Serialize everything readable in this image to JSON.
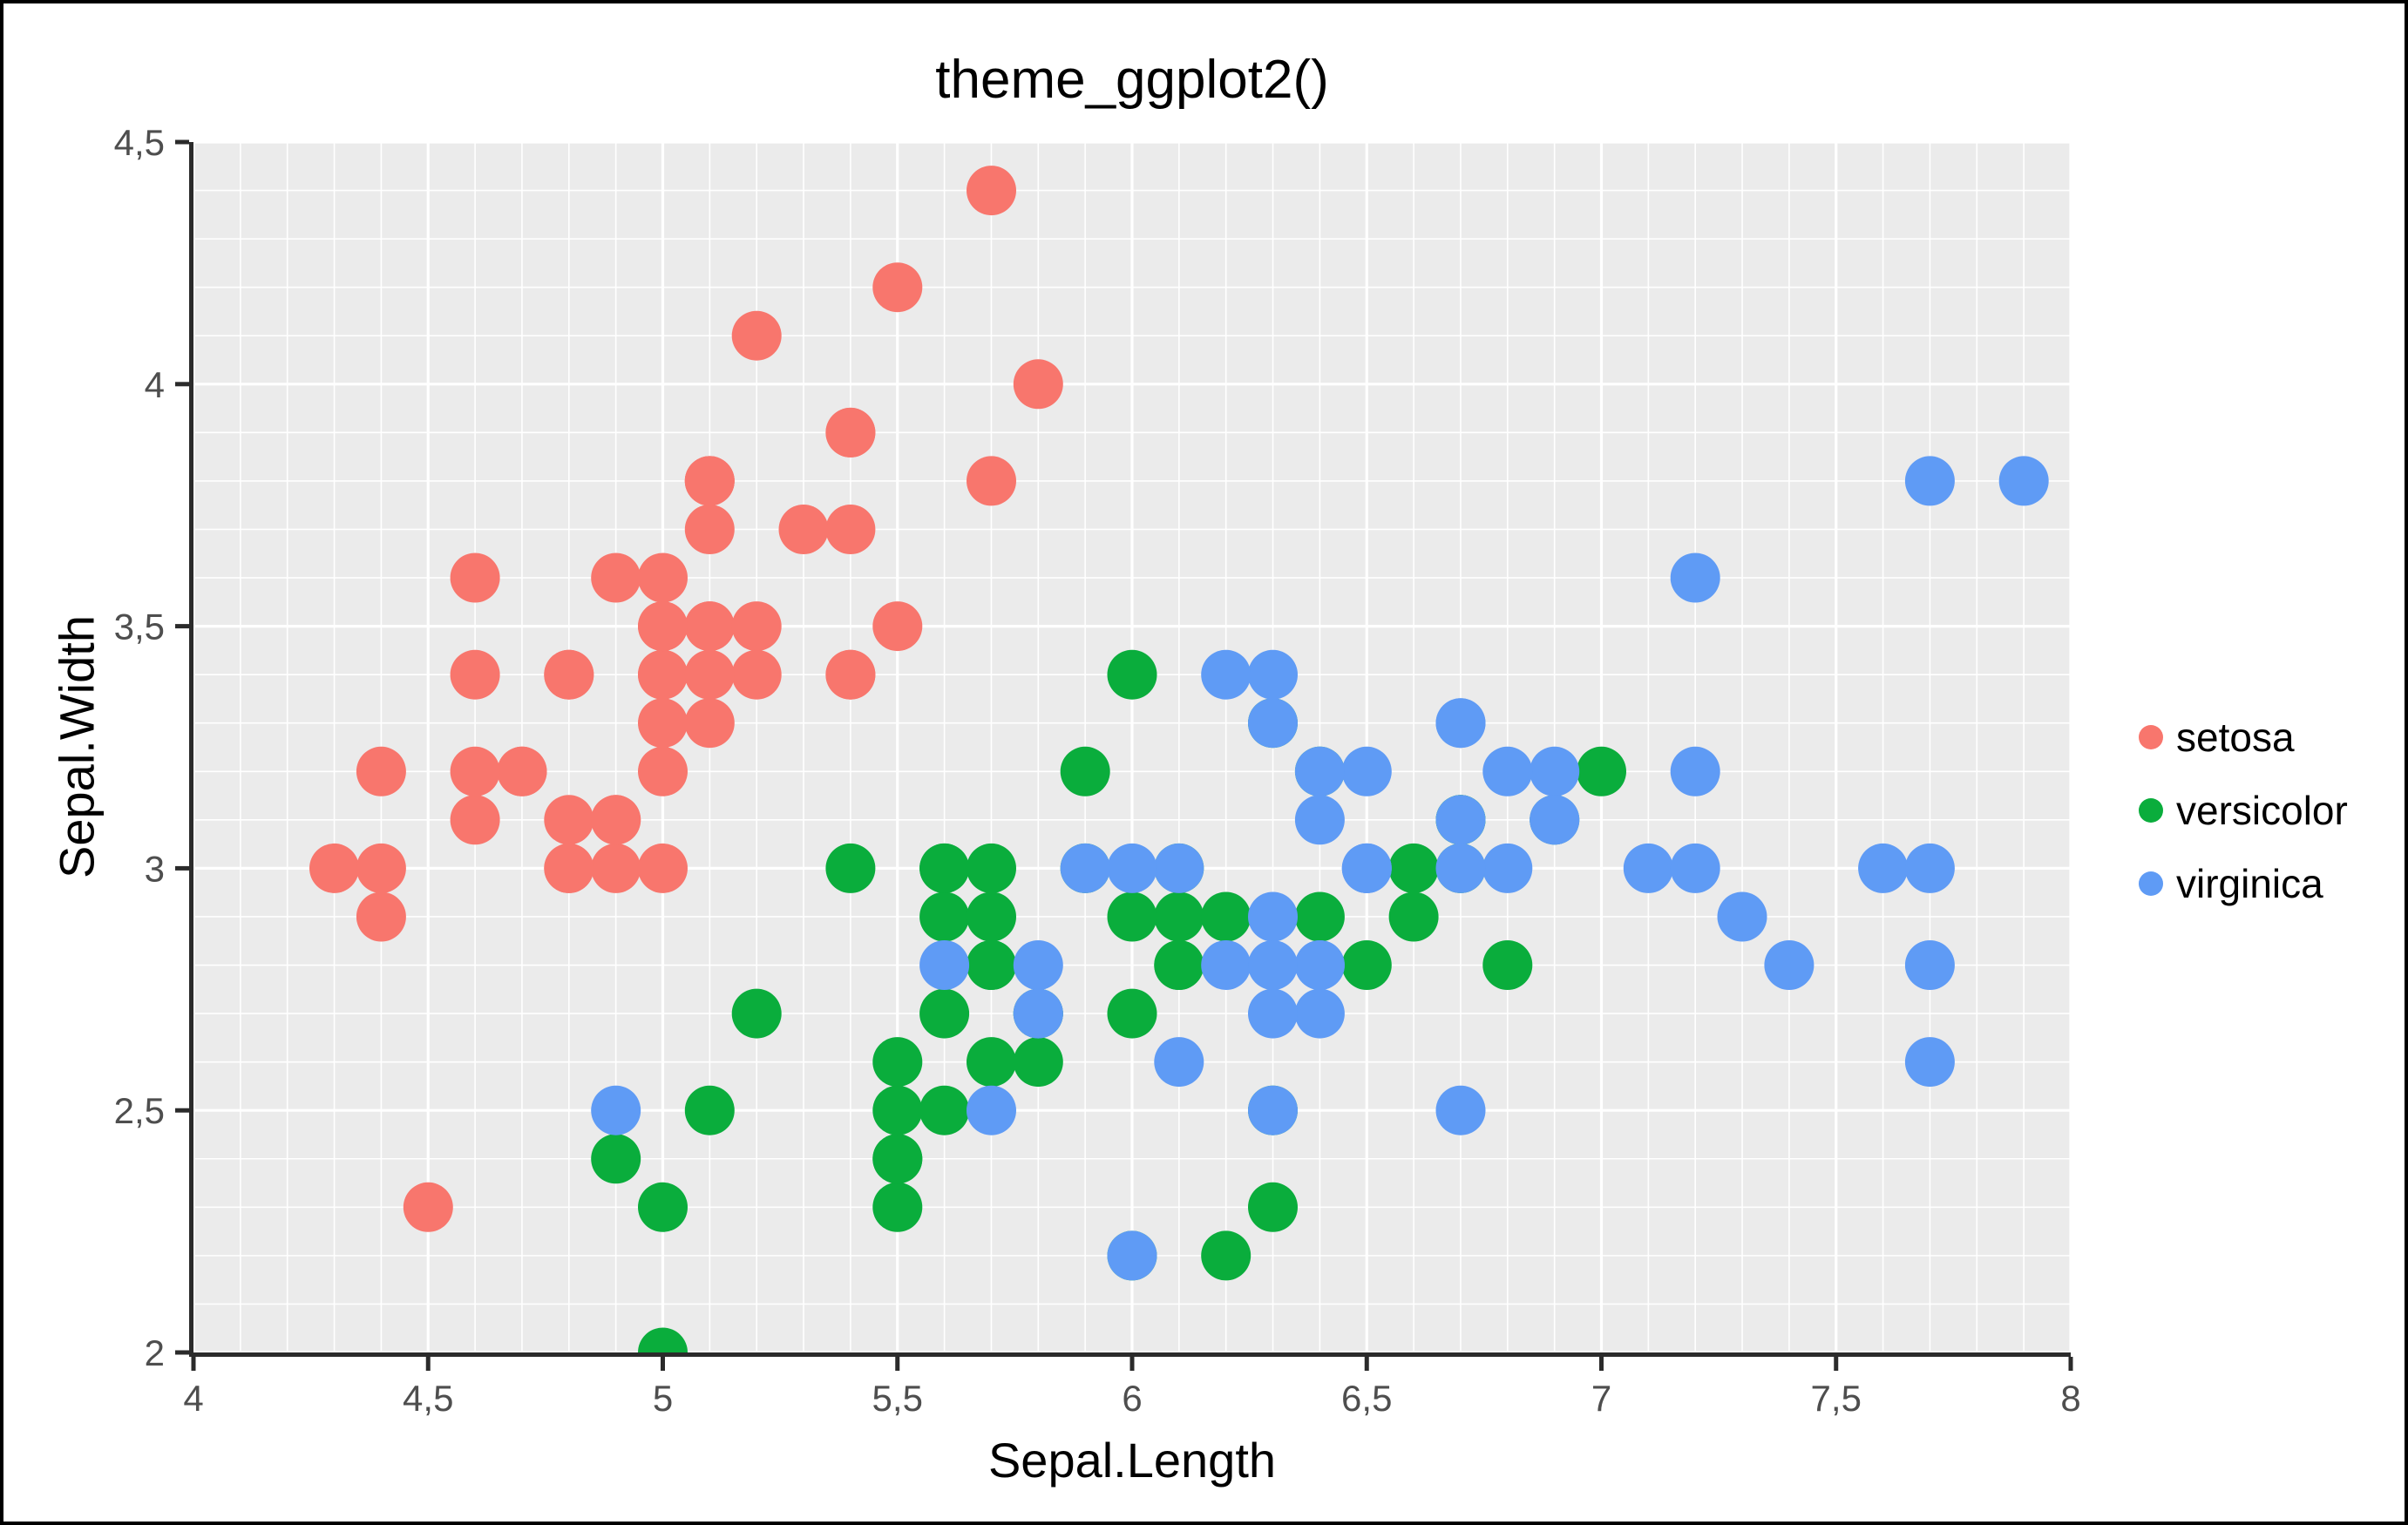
{
  "chart_data": {
    "type": "scatter",
    "title": "theme_ggplot2()",
    "xlabel": "Sepal.Length",
    "ylabel": "Sepal.Width",
    "xlim": [
      4,
      8
    ],
    "ylim": [
      2,
      4.5
    ],
    "x_major_ticks": [
      4,
      4.5,
      5,
      5.5,
      6,
      6.5,
      7,
      7.5,
      8
    ],
    "x_tick_labels": [
      "4",
      "4,5",
      "5",
      "5,5",
      "6",
      "6,5",
      "7",
      "7,5",
      "8"
    ],
    "y_major_ticks": [
      2,
      2.5,
      3,
      3.5,
      4,
      4.5
    ],
    "y_tick_labels": [
      "2",
      "2,5",
      "3",
      "3,5",
      "4",
      "4,5"
    ],
    "minor_step": 0.1,
    "grid": true,
    "legend_position": "right",
    "colors": {
      "panel_background": "#EBEBEB",
      "grid": "#FFFFFF",
      "axis_line": "#2B2B2B",
      "tick_label": "#4E4E4E",
      "text": "#000000"
    },
    "series": [
      {
        "name": "setosa",
        "color": "#F8766D",
        "points": [
          [
            5.1,
            3.5
          ],
          [
            4.9,
            3.0
          ],
          [
            4.7,
            3.2
          ],
          [
            4.6,
            3.1
          ],
          [
            5.0,
            3.6
          ],
          [
            5.4,
            3.9
          ],
          [
            4.6,
            3.4
          ],
          [
            5.0,
            3.4
          ],
          [
            4.4,
            2.9
          ],
          [
            4.9,
            3.1
          ],
          [
            5.4,
            3.7
          ],
          [
            4.8,
            3.4
          ],
          [
            4.8,
            3.0
          ],
          [
            4.3,
            3.0
          ],
          [
            5.8,
            4.0
          ],
          [
            5.7,
            4.4
          ],
          [
            5.4,
            3.9
          ],
          [
            5.1,
            3.5
          ],
          [
            5.7,
            3.8
          ],
          [
            5.1,
            3.8
          ],
          [
            5.4,
            3.4
          ],
          [
            5.1,
            3.7
          ],
          [
            4.6,
            3.6
          ],
          [
            5.1,
            3.3
          ],
          [
            4.8,
            3.4
          ],
          [
            5.0,
            3.0
          ],
          [
            5.0,
            3.4
          ],
          [
            5.2,
            3.5
          ],
          [
            5.2,
            3.4
          ],
          [
            4.7,
            3.2
          ],
          [
            4.8,
            3.1
          ],
          [
            5.4,
            3.4
          ],
          [
            5.2,
            4.1
          ],
          [
            5.5,
            4.2
          ],
          [
            4.9,
            3.1
          ],
          [
            5.0,
            3.2
          ],
          [
            5.5,
            3.5
          ],
          [
            4.9,
            3.6
          ],
          [
            4.4,
            3.0
          ],
          [
            5.1,
            3.4
          ],
          [
            5.0,
            3.5
          ],
          [
            4.5,
            2.3
          ],
          [
            4.4,
            3.2
          ],
          [
            5.0,
            3.5
          ],
          [
            5.1,
            3.8
          ],
          [
            4.8,
            3.0
          ],
          [
            5.1,
            3.8
          ],
          [
            4.6,
            3.2
          ],
          [
            5.3,
            3.7
          ],
          [
            5.0,
            3.3
          ]
        ]
      },
      {
        "name": "versicolor",
        "color": "#0AAD3C",
        "points": [
          [
            7.0,
            3.2
          ],
          [
            6.4,
            3.2
          ],
          [
            6.9,
            3.1
          ],
          [
            5.5,
            2.3
          ],
          [
            6.5,
            2.8
          ],
          [
            5.7,
            2.8
          ],
          [
            6.3,
            3.3
          ],
          [
            4.9,
            2.4
          ],
          [
            6.6,
            2.9
          ],
          [
            5.2,
            2.7
          ],
          [
            5.0,
            2.0
          ],
          [
            5.9,
            3.0
          ],
          [
            6.0,
            2.2
          ],
          [
            6.1,
            2.9
          ],
          [
            5.6,
            2.9
          ],
          [
            6.7,
            3.1
          ],
          [
            5.6,
            3.0
          ],
          [
            5.8,
            2.7
          ],
          [
            6.2,
            2.2
          ],
          [
            5.6,
            2.5
          ],
          [
            5.9,
            3.2
          ],
          [
            6.1,
            2.8
          ],
          [
            6.3,
            2.5
          ],
          [
            6.1,
            2.8
          ],
          [
            6.4,
            2.9
          ],
          [
            6.6,
            3.0
          ],
          [
            6.8,
            2.8
          ],
          [
            6.7,
            3.0
          ],
          [
            6.0,
            2.9
          ],
          [
            5.7,
            2.6
          ],
          [
            5.5,
            2.4
          ],
          [
            5.5,
            2.4
          ],
          [
            5.8,
            2.7
          ],
          [
            6.0,
            2.7
          ],
          [
            5.4,
            3.0
          ],
          [
            6.0,
            3.4
          ],
          [
            6.7,
            3.1
          ],
          [
            6.3,
            2.3
          ],
          [
            5.6,
            3.0
          ],
          [
            5.5,
            2.5
          ],
          [
            5.5,
            2.6
          ],
          [
            6.1,
            3.0
          ],
          [
            5.8,
            2.6
          ],
          [
            5.0,
            2.3
          ],
          [
            5.6,
            2.7
          ],
          [
            5.7,
            3.0
          ],
          [
            5.7,
            2.9
          ],
          [
            6.2,
            2.9
          ],
          [
            5.1,
            2.5
          ],
          [
            5.7,
            2.8
          ]
        ]
      },
      {
        "name": "virginica",
        "color": "#5F9BF5",
        "points": [
          [
            6.3,
            3.3
          ],
          [
            5.8,
            2.7
          ],
          [
            7.1,
            3.0
          ],
          [
            6.3,
            2.9
          ],
          [
            6.5,
            3.0
          ],
          [
            7.6,
            3.0
          ],
          [
            4.9,
            2.5
          ],
          [
            7.3,
            2.9
          ],
          [
            6.7,
            2.5
          ],
          [
            7.2,
            3.6
          ],
          [
            6.5,
            3.2
          ],
          [
            6.4,
            2.7
          ],
          [
            6.8,
            3.0
          ],
          [
            5.7,
            2.5
          ],
          [
            5.8,
            2.8
          ],
          [
            6.4,
            3.2
          ],
          [
            6.5,
            3.0
          ],
          [
            7.7,
            3.8
          ],
          [
            7.7,
            2.6
          ],
          [
            6.0,
            2.2
          ],
          [
            6.9,
            3.2
          ],
          [
            5.6,
            2.8
          ],
          [
            7.7,
            2.8
          ],
          [
            6.3,
            2.7
          ],
          [
            6.7,
            3.3
          ],
          [
            7.2,
            3.2
          ],
          [
            6.2,
            2.8
          ],
          [
            6.1,
            3.0
          ],
          [
            6.4,
            2.8
          ],
          [
            7.2,
            3.0
          ],
          [
            7.4,
            2.8
          ],
          [
            7.9,
            3.8
          ],
          [
            6.4,
            2.8
          ],
          [
            6.3,
            2.8
          ],
          [
            6.1,
            2.6
          ],
          [
            7.7,
            3.0
          ],
          [
            6.3,
            3.4
          ],
          [
            6.4,
            3.1
          ],
          [
            6.0,
            3.0
          ],
          [
            6.9,
            3.1
          ],
          [
            6.7,
            3.1
          ],
          [
            6.9,
            3.1
          ],
          [
            5.8,
            2.7
          ],
          [
            6.8,
            3.2
          ],
          [
            6.7,
            3.3
          ],
          [
            6.7,
            3.0
          ],
          [
            6.3,
            2.5
          ],
          [
            6.5,
            3.0
          ],
          [
            6.2,
            3.4
          ],
          [
            5.9,
            3.0
          ]
        ]
      }
    ]
  }
}
